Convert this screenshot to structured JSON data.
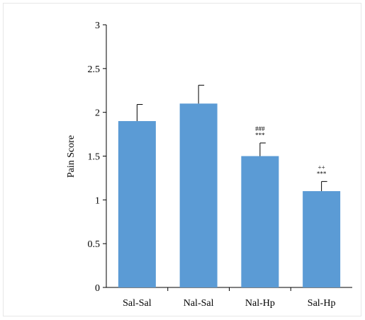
{
  "chart_data": {
    "type": "bar",
    "title": "",
    "xlabel": "",
    "ylabel": "Pain Score",
    "ylim": [
      0,
      3
    ],
    "yticks": [
      "0",
      "0.5",
      "1",
      "1.5",
      "2",
      "2.5",
      "3"
    ],
    "categories": [
      "Sal-Sal",
      "Nal-Sal",
      "Nal-Hp",
      "Sal-Hp"
    ],
    "values": [
      1.9,
      2.1,
      1.5,
      1.1
    ],
    "error": [
      0.19,
      0.21,
      0.15,
      0.11
    ],
    "annotations": [
      {
        "category": "Nal-Hp",
        "lines": [
          "###",
          "***"
        ]
      },
      {
        "category": "Sal-Hp",
        "lines": [
          "++",
          "***"
        ]
      }
    ],
    "bar_color": "#5b9bd5",
    "grid": false
  }
}
